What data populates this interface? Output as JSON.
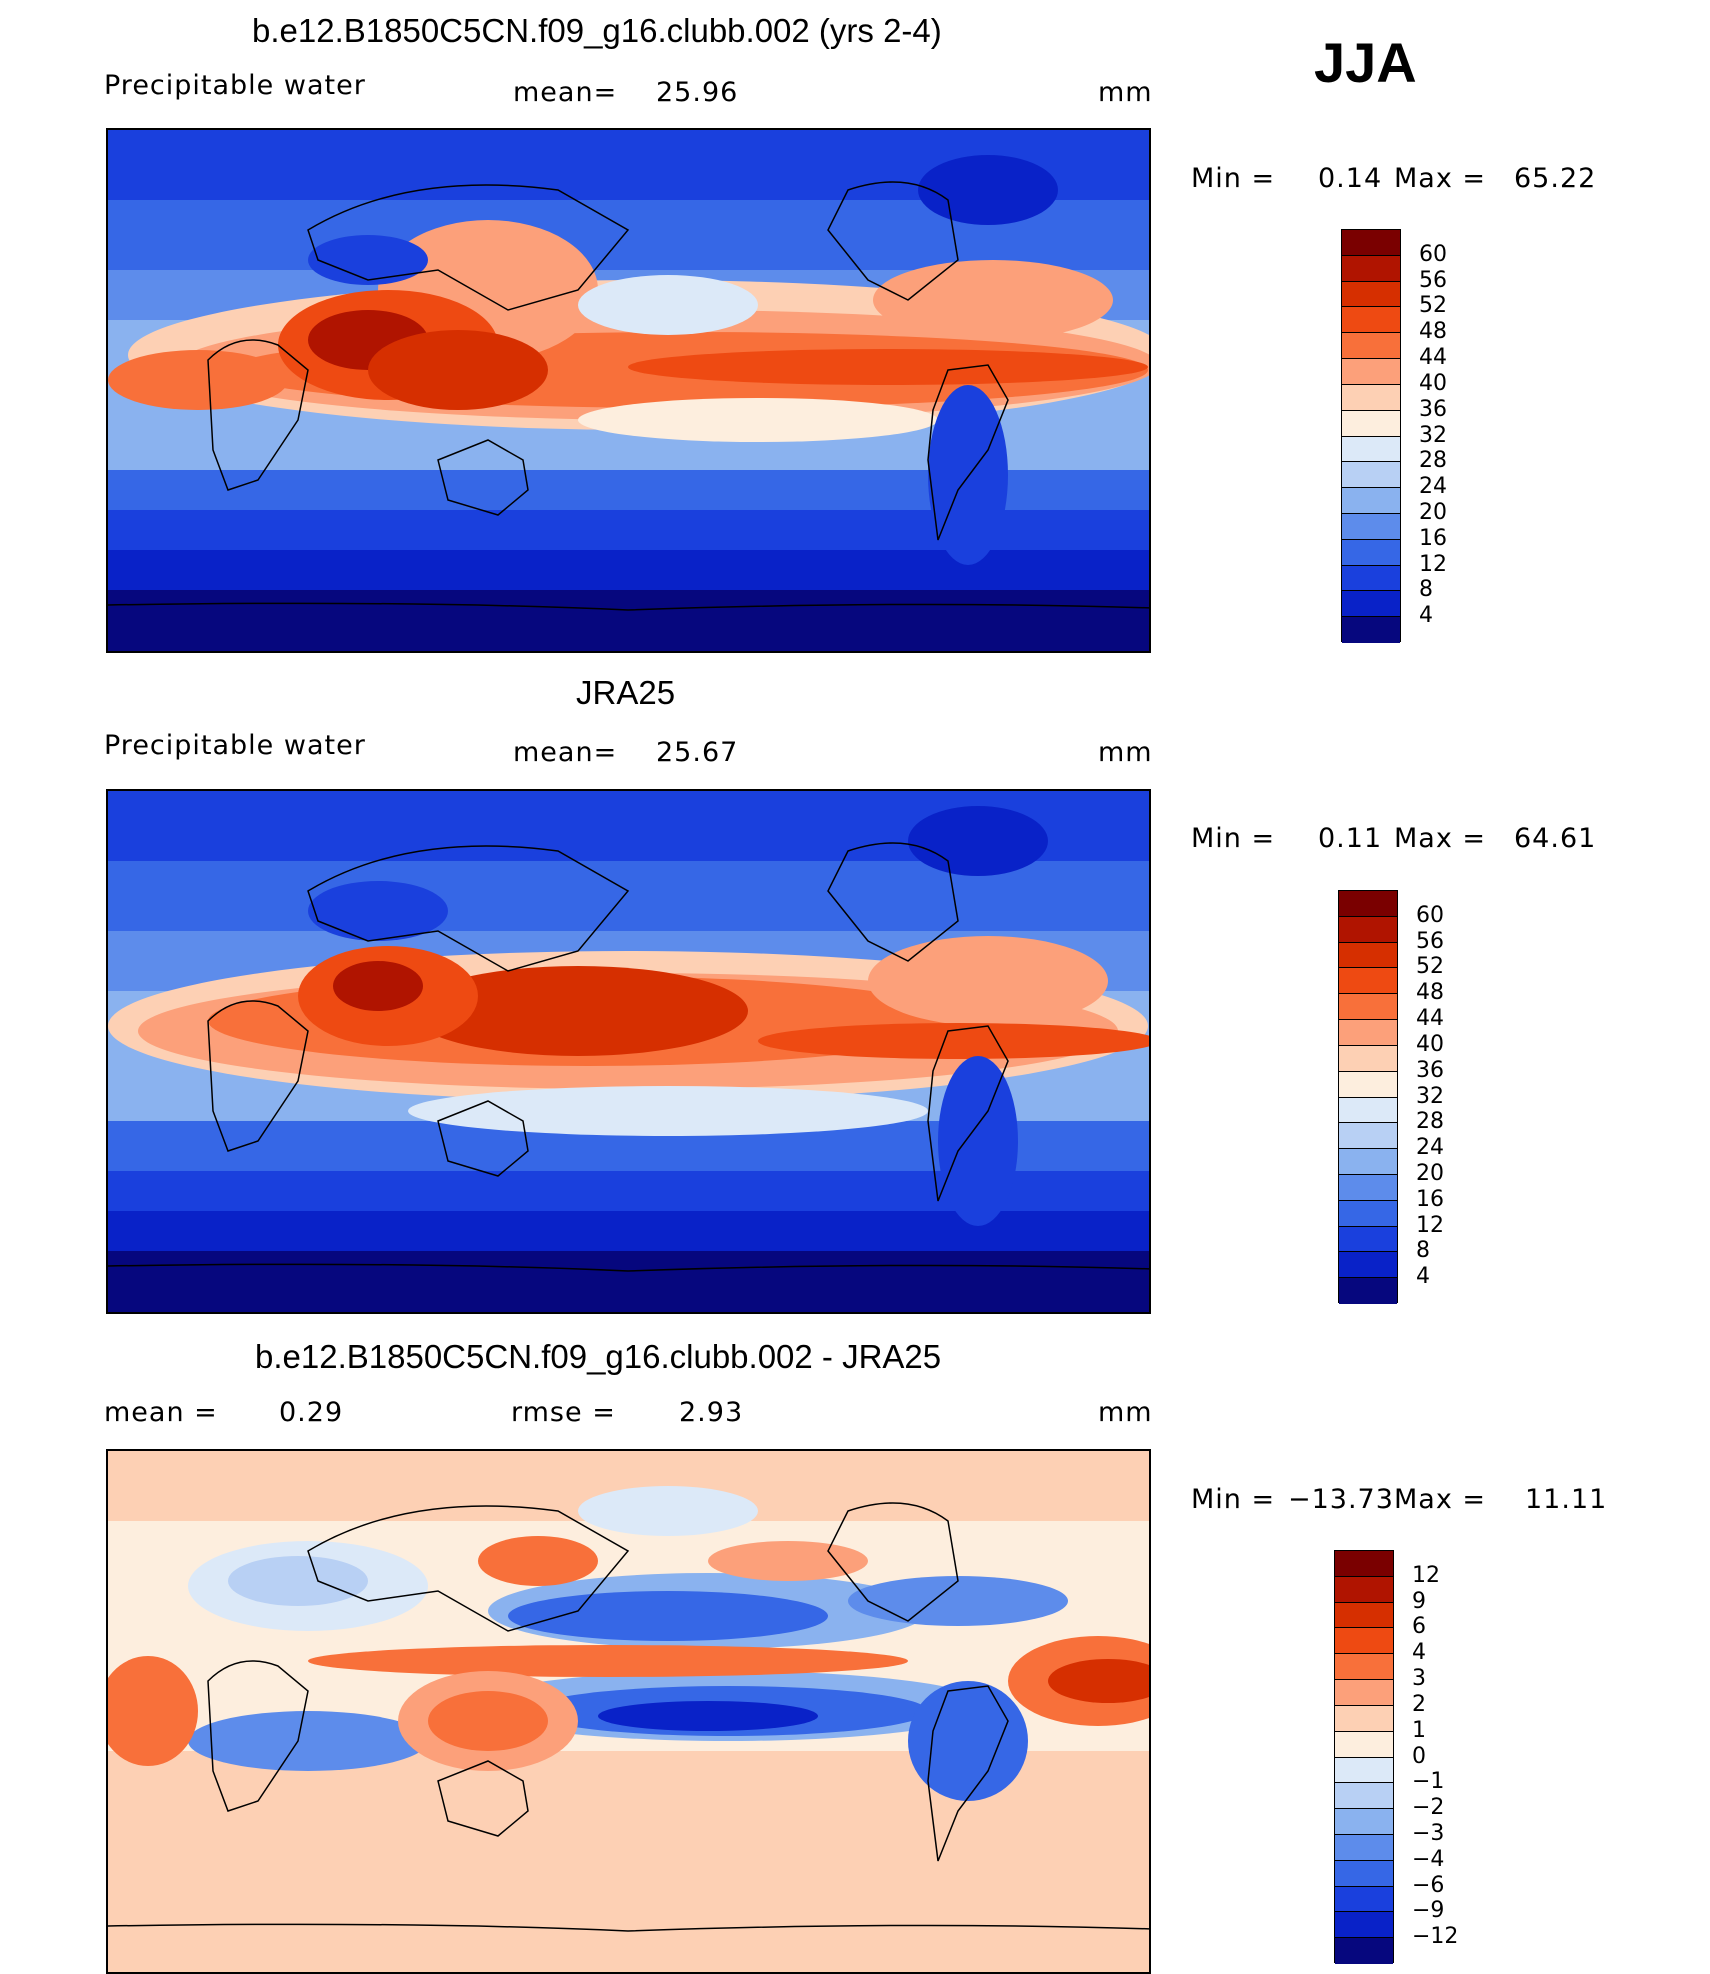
{
  "season": "JJA",
  "panels": [
    {
      "title": "b.e12.B1850C5CN.f09_g16.clubb.002 (yrs 2-4)",
      "left_label": "Precipitable  water",
      "stat_label": "mean=",
      "stat_value": "25.96",
      "stat2_label": "",
      "stat2_value": "",
      "units": "mm",
      "minmax": {
        "min_label": "Min  =",
        "min_value": "0.14",
        "max_label": "Max  =",
        "max_value": "65.22"
      }
    },
    {
      "title": "JRA25",
      "left_label": "Precipitable  water",
      "stat_label": "mean=",
      "stat_value": "25.67",
      "stat2_label": "",
      "stat2_value": "",
      "units": "mm",
      "minmax": {
        "min_label": "Min  =",
        "min_value": "0.11",
        "max_label": "Max  =",
        "max_value": "64.61"
      }
    },
    {
      "title": "b.e12.B1850C5CN.f09_g16.clubb.002 - JRA25",
      "left_label": "mean  =",
      "stat_label": "0.29",
      "stat_value": "",
      "stat2_label": "rmse  =",
      "stat2_value": "2.93",
      "units": "mm",
      "minmax": {
        "min_label": "Min  =",
        "min_value": "−13.73",
        "max_label": "Max  =",
        "max_value": "11.11"
      }
    }
  ],
  "colorbars": {
    "absolute": {
      "labels": [
        "60",
        "56",
        "52",
        "48",
        "44",
        "40",
        "36",
        "32",
        "28",
        "24",
        "20",
        "16",
        "12",
        "8",
        "4"
      ],
      "colors": [
        "#7a0000",
        "#b01400",
        "#d62f00",
        "#ee4a12",
        "#f8703a",
        "#fca07a",
        "#fdd0b4",
        "#fdeede",
        "#dce9f8",
        "#b8d0f4",
        "#8ab2ef",
        "#5d8ceb",
        "#3667e6",
        "#1a40dd",
        "#0922c8",
        "#06077e"
      ]
    },
    "difference": {
      "labels": [
        "12",
        "9",
        "6",
        "4",
        "3",
        "2",
        "1",
        "0",
        "−1",
        "−2",
        "−3",
        "−4",
        "−6",
        "−9",
        "−12"
      ],
      "colors": [
        "#7a0000",
        "#b01400",
        "#d62f00",
        "#ee4a12",
        "#f8703a",
        "#fca07a",
        "#fdd0b4",
        "#fdeede",
        "#dce9f8",
        "#b8d0f4",
        "#8ab2ef",
        "#5d8ceb",
        "#3667e6",
        "#1a40dd",
        "#0922c8",
        "#06077e"
      ]
    }
  },
  "chart_data": [
    {
      "type": "heatmap",
      "title": "b.e12.B1850C5CN.f09_g16.clubb.002 (yrs 2-4)",
      "variable": "Precipitable water",
      "units": "mm",
      "mean": 25.96,
      "min": 0.14,
      "max": 65.22,
      "contour_levels": [
        4,
        8,
        12,
        16,
        20,
        24,
        28,
        32,
        36,
        40,
        44,
        48,
        52,
        56,
        60
      ]
    },
    {
      "type": "heatmap",
      "title": "JRA25",
      "variable": "Precipitable water",
      "units": "mm",
      "mean": 25.67,
      "min": 0.11,
      "max": 64.61,
      "contour_levels": [
        4,
        8,
        12,
        16,
        20,
        24,
        28,
        32,
        36,
        40,
        44,
        48,
        52,
        56,
        60
      ]
    },
    {
      "type": "heatmap",
      "title": "b.e12.B1850C5CN.f09_g16.clubb.002 - JRA25",
      "units": "mm",
      "mean": 0.29,
      "rmse": 2.93,
      "min": -13.73,
      "max": 11.11,
      "contour_levels": [
        -12,
        -9,
        -6,
        -4,
        -3,
        -2,
        -1,
        0,
        1,
        2,
        3,
        4,
        6,
        9,
        12
      ]
    }
  ]
}
